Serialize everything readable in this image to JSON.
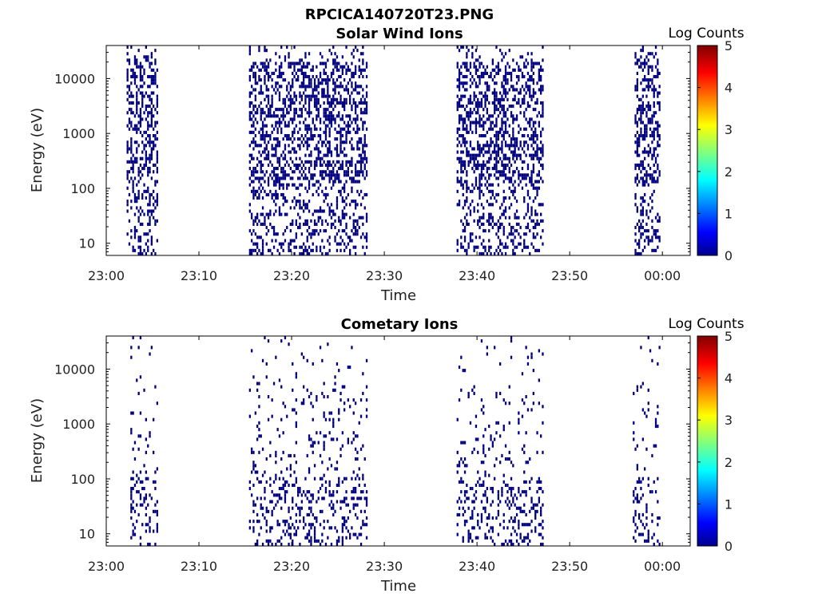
{
  "figure_title": "RPCICA140720T23.PNG",
  "colors": {
    "cell": "#000080",
    "background": "#ffffff",
    "axis": "#000000"
  },
  "chart_data": [
    {
      "type": "heatmap",
      "title": "Solar Wind Ions",
      "xlabel": "Time",
      "ylabel": "Energy (eV)",
      "x_tick_labels": [
        "23:00",
        "23:10",
        "23:20",
        "23:30",
        "23:40",
        "23:50",
        "00:00"
      ],
      "x_tick_values_min": [
        0,
        10,
        20,
        30,
        40,
        50,
        60
      ],
      "xlim_min": [
        0,
        63
      ],
      "y_scale": "log",
      "y_tick_labels": [
        "10",
        "100",
        "1000",
        "10000"
      ],
      "y_tick_values": [
        10,
        100,
        1000,
        10000
      ],
      "ylim": [
        6,
        40000
      ],
      "colorbar": {
        "label": "Log Counts",
        "range": [
          0,
          5
        ],
        "ticks": [
          "0",
          "1",
          "2",
          "3",
          "4",
          "5"
        ],
        "colormap": "jet"
      },
      "activity_intervals_min": [
        [
          2.2,
          5.6
        ],
        [
          15.4,
          28.0
        ],
        [
          37.8,
          47.2
        ],
        [
          57.0,
          59.8
        ]
      ],
      "dominant_value_log_counts": 0
    },
    {
      "type": "heatmap",
      "title": "Cometary Ions",
      "xlabel": "Time",
      "ylabel": "Energy (eV)",
      "x_tick_labels": [
        "23:00",
        "23:10",
        "23:20",
        "23:30",
        "23:40",
        "23:50",
        "00:00"
      ],
      "x_tick_values_min": [
        0,
        10,
        20,
        30,
        40,
        50,
        60
      ],
      "xlim_min": [
        0,
        63
      ],
      "y_scale": "log",
      "y_tick_labels": [
        "10",
        "100",
        "1000",
        "10000"
      ],
      "y_tick_values": [
        10,
        100,
        1000,
        10000
      ],
      "ylim": [
        6,
        40000
      ],
      "colorbar": {
        "label": "Log Counts",
        "range": [
          0,
          5
        ],
        "ticks": [
          "0",
          "1",
          "2",
          "3",
          "4",
          "5"
        ],
        "colormap": "jet"
      },
      "activity_intervals_min": [
        [
          2.6,
          5.6
        ],
        [
          15.4,
          28.0
        ],
        [
          37.8,
          47.2
        ],
        [
          56.8,
          59.8
        ]
      ],
      "dominant_value_log_counts": 0
    }
  ]
}
